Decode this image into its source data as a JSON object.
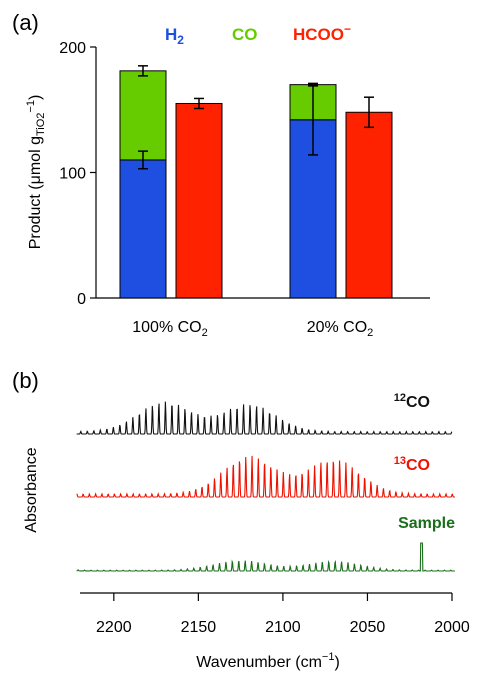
{
  "chart_data": [
    {
      "panel_label": "(a)",
      "type": "bar",
      "ylabel": "Product (μmol g",
      "ylabel_sub": "TiO2",
      "ylabel_tail": "−1",
      "ylabel_close": ")",
      "ylim": [
        0,
        200
      ],
      "yticks": [
        "0",
        "100",
        "200"
      ],
      "categories": [
        "100% CO",
        "20% CO"
      ],
      "category_sub": "2",
      "legend": [
        {
          "main": "H",
          "sub": "2",
          "color": "#1f4fe0"
        },
        {
          "main": "CO",
          "sub": "",
          "color": "#66cc00"
        },
        {
          "main": "HCOO",
          "sup": "−",
          "color": "#ff2200"
        }
      ],
      "series": [
        {
          "name": "H2",
          "color": "#1f4fe0",
          "values": [
            110,
            142
          ],
          "errors": [
            7,
            28
          ]
        },
        {
          "name": "CO",
          "color": "#66cc00",
          "values": [
            71,
            28
          ],
          "errors": [
            4,
            1
          ]
        },
        {
          "name": "HCOO−",
          "color": "#ff2200",
          "values": [
            155,
            148
          ],
          "errors": [
            4,
            12
          ]
        }
      ]
    },
    {
      "panel_label": "(b)",
      "type": "line",
      "xlabel": "Wavenumber (cm",
      "xlabel_sup": "−1",
      "xlabel_close": ")",
      "ylabel": "Absorbance",
      "xlim": [
        2220,
        2000
      ],
      "xticks": [
        "2200",
        "2150",
        "2100",
        "2050",
        "2000"
      ],
      "series": [
        {
          "name": "12CO",
          "label_sup": "12",
          "label_main": "CO",
          "color": "#111111",
          "centers": [
            2170,
            2120
          ],
          "spacing": 3.85,
          "peak_height": 1.0
        },
        {
          "name": "13CO",
          "label_sup": "13",
          "label_main": "CO",
          "color": "#ee1100",
          "centers": [
            2120,
            2070
          ],
          "spacing": 3.7,
          "peak_height": 1.0
        },
        {
          "name": "Sample",
          "label_main": "Sample",
          "color": "#1a6e1a",
          "centers": [
            2125,
            2070
          ],
          "spacing": 3.8,
          "peak_height": 0.45
        }
      ]
    }
  ]
}
